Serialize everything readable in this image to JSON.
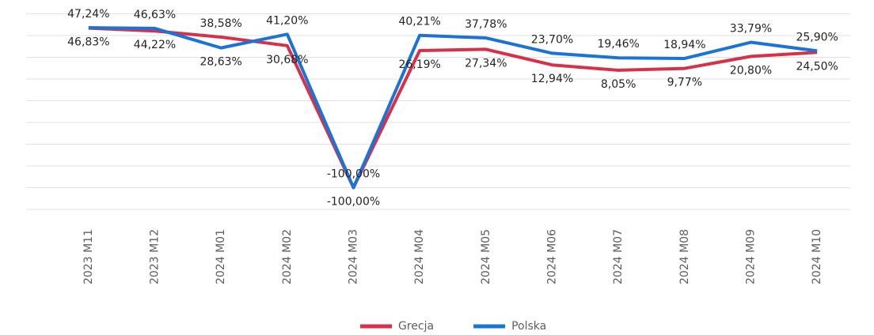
{
  "chart_data": {
    "type": "line",
    "categories": [
      "2023 M11",
      "2023 M12",
      "2024 M01",
      "2024 M02",
      "2024 M03",
      "2024 M04",
      "2024 M05",
      "2024 M06",
      "2024 M07",
      "2024 M08",
      "2024 M09",
      "2024 M10"
    ],
    "series": [
      {
        "name": "Grecja",
        "color": "#d9304a",
        "values": [
          46.83,
          44.22,
          38.58,
          30.68,
          -100,
          26.19,
          27.34,
          12.94,
          8.05,
          9.77,
          20.8,
          24.5
        ],
        "value_labels": [
          "46,83%",
          "44,22%",
          "38,58%",
          "30,68%",
          "-100,00%",
          "26,19%",
          "27,34%",
          "12,94%",
          "8,05%",
          "9,77%",
          "20,80%",
          "24,50%"
        ]
      },
      {
        "name": "Polska",
        "color": "#1a74d8",
        "values": [
          47.24,
          46.63,
          28.63,
          41.2,
          -100,
          40.21,
          37.78,
          23.7,
          19.46,
          18.94,
          33.79,
          25.9
        ],
        "value_labels": [
          "47,24%",
          "46,63%",
          "28,63%",
          "41,20%",
          "-100,00%",
          "40,21%",
          "37,78%",
          "23,70%",
          "19,46%",
          "18,94%",
          "33,79%",
          "25,90%"
        ]
      }
    ],
    "ylim": [
      -120,
      60
    ],
    "yticks": [
      -120,
      -100,
      -80,
      -60,
      -40,
      -20,
      0,
      20,
      40,
      60
    ],
    "grid": true
  }
}
